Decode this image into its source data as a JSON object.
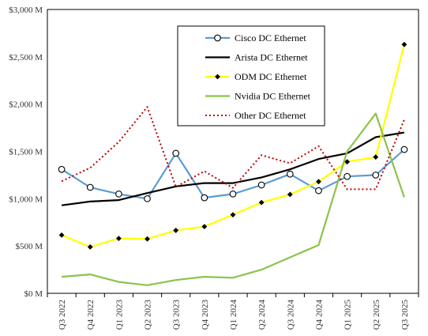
{
  "chart_data": {
    "type": "line",
    "title": "",
    "xlabel": "",
    "ylabel": "",
    "categories": [
      "Q3 2022",
      "Q4 2022",
      "Q1 2023",
      "Q2 2023",
      "Q3 2023",
      "Q4 2023",
      "Q1 2024",
      "Q2 2024",
      "Q3 2024",
      "Q4 2024",
      "Q1 2025",
      "Q2 2025",
      "Q3 2025"
    ],
    "y_ticks": [
      "$0 M",
      "$500 M",
      "$1,000 M",
      "$1,500 M",
      "$2,000 M",
      "$2,500 M",
      "$3,000 M"
    ],
    "ylim": [
      0,
      3000
    ],
    "grid": false,
    "legend_position": "top-center",
    "series": [
      {
        "name": "Cisco DC Ethernet",
        "color": "#5B9BD5",
        "style": "solid",
        "marker": "open-circle",
        "values": [
          1310,
          1120,
          1050,
          1000,
          1480,
          1010,
          1050,
          1145,
          1260,
          1085,
          1235,
          1250,
          1520
        ]
      },
      {
        "name": "Arista DC Ethernet",
        "color": "#000000",
        "style": "solid",
        "marker": "none",
        "values": [
          930,
          970,
          985,
          1060,
          1130,
          1165,
          1165,
          1225,
          1310,
          1420,
          1480,
          1650,
          1700
        ]
      },
      {
        "name": "ODM DC Ethernet",
        "color": "#FFFF00",
        "style": "solid",
        "marker": "black-diamond",
        "values": [
          615,
          490,
          580,
          575,
          665,
          705,
          830,
          960,
          1045,
          1180,
          1390,
          1440,
          2630
        ]
      },
      {
        "name": "Nvidia DC Ethernet",
        "color": "#8BC34A",
        "style": "solid",
        "marker": "none",
        "values": [
          175,
          200,
          120,
          85,
          140,
          175,
          165,
          250,
          380,
          510,
          1500,
          1900,
          1015
        ]
      },
      {
        "name": "Other DC Ethernet",
        "color": "#C00000",
        "style": "dotted",
        "marker": "none",
        "values": [
          1185,
          1325,
          1600,
          1970,
          1125,
          1290,
          1115,
          1460,
          1375,
          1555,
          1100,
          1100,
          1835
        ]
      }
    ]
  }
}
